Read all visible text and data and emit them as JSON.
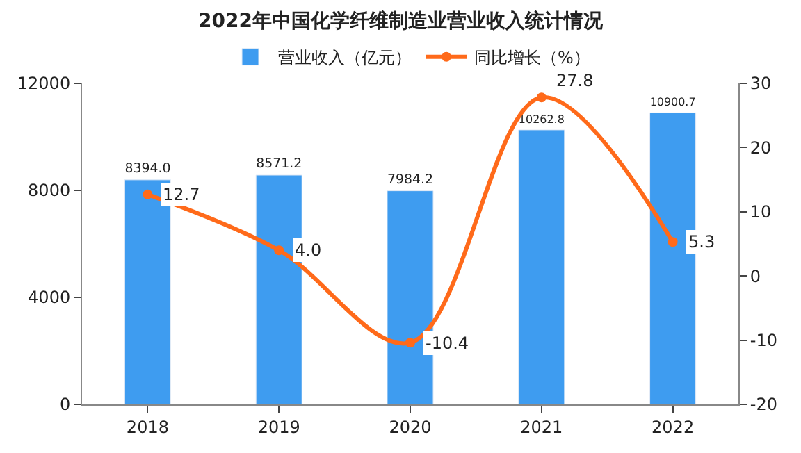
{
  "chart_data": {
    "type": "bar",
    "title": "2022年中国化学纤维制造业营业收入统计情况",
    "categories": [
      "2018",
      "2019",
      "2020",
      "2021",
      "2022"
    ],
    "series": [
      {
        "name": "营业收入（亿元）",
        "color": "#3e9cf0",
        "values": [
          8394.0,
          8571.2,
          7984.2,
          10262.8,
          10900.7
        ],
        "value_labels": [
          "8394.0",
          "8571.2",
          "7984.2",
          "10262.8",
          "10900.7"
        ]
      },
      {
        "name": "同比增长（%）",
        "type": "line",
        "axis": "y2",
        "color": "#ff6a1a",
        "marker": "circle",
        "values": [
          12.7,
          4.0,
          -10.4,
          27.8,
          5.3
        ],
        "value_labels": [
          "12.7",
          "4.0",
          "-10.4",
          "27.8",
          "5.3"
        ]
      }
    ],
    "ylim": [
      0,
      12000
    ],
    "yticks": [
      0,
      4000,
      8000,
      12000
    ],
    "y2lim": [
      -20,
      30
    ],
    "y2ticks": [
      -20,
      -10,
      0,
      10,
      20,
      30
    ],
    "legend": "top"
  }
}
